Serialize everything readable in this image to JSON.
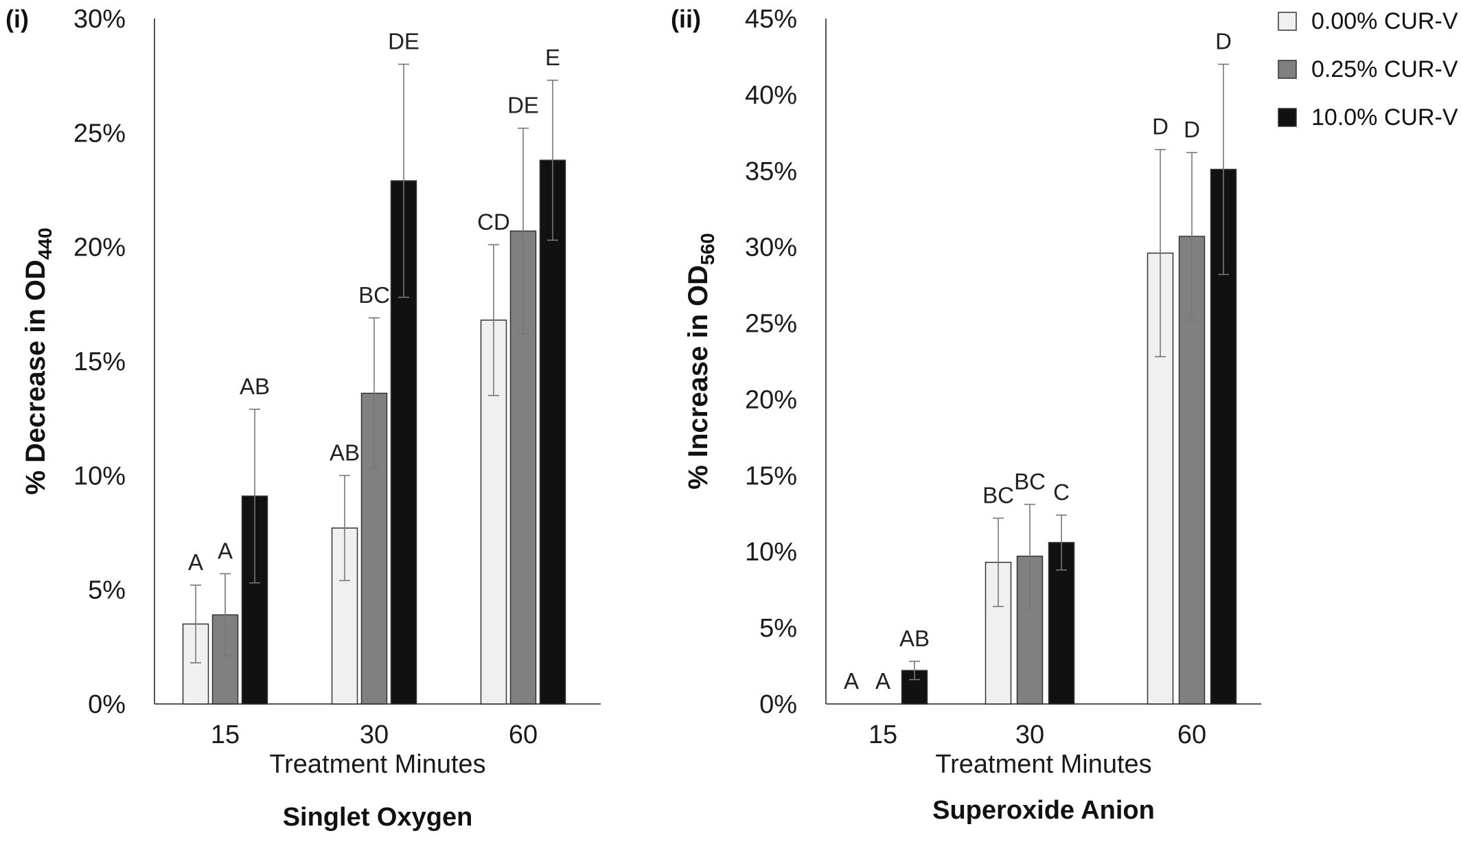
{
  "chart_data": [
    {
      "type": "bar",
      "panel_tag": "(i)",
      "title": "Singlet Oxygen",
      "xlabel": "Treatment Minutes",
      "ylabel_main": "% Decrease in OD",
      "ylabel_sub": "440",
      "ylim": [
        0,
        30
      ],
      "yticks": [
        0,
        5,
        10,
        15,
        20,
        25,
        30
      ],
      "ytick_labels": [
        "0%",
        "5%",
        "10%",
        "15%",
        "20%",
        "25%",
        "30%"
      ],
      "categories": [
        "15",
        "30",
        "60"
      ],
      "series": [
        {
          "name": "0.00% CUR-V",
          "color": "#f0f0f0",
          "values": [
            3.5,
            7.7,
            16.8
          ],
          "errors": [
            1.7,
            2.3,
            3.3
          ],
          "letters": [
            "A",
            "AB",
            "CD"
          ]
        },
        {
          "name": "0.25% CUR-V",
          "color": "#808080",
          "values": [
            3.9,
            13.6,
            20.7
          ],
          "errors": [
            1.8,
            3.3,
            4.5
          ],
          "letters": [
            "A",
            "BC",
            "DE"
          ]
        },
        {
          "name": "10.0% CUR-V",
          "color": "#111111",
          "values": [
            9.1,
            22.9,
            23.8
          ],
          "errors": [
            3.8,
            5.1,
            3.5
          ],
          "letters": [
            "AB",
            "DE",
            "E"
          ]
        }
      ],
      "grid": false
    },
    {
      "type": "bar",
      "panel_tag": "(ii)",
      "title": "Superoxide Anion",
      "xlabel": "Treatment Minutes",
      "ylabel_main": "% Increase in OD",
      "ylabel_sub": "560",
      "ylim": [
        0,
        45
      ],
      "yticks": [
        0,
        5,
        10,
        15,
        20,
        25,
        30,
        35,
        40,
        45
      ],
      "ytick_labels": [
        "0%",
        "5%",
        "10%",
        "15%",
        "20%",
        "25%",
        "30%",
        "35%",
        "40%",
        "45%"
      ],
      "categories": [
        "15",
        "30",
        "60"
      ],
      "series": [
        {
          "name": "0.00% CUR-V",
          "color": "#f0f0f0",
          "values": [
            0,
            9.3,
            29.6
          ],
          "errors": [
            0,
            2.9,
            6.8
          ],
          "letters": [
            "A",
            "BC",
            "D"
          ]
        },
        {
          "name": "0.25% CUR-V",
          "color": "#808080",
          "values": [
            0,
            9.7,
            30.7
          ],
          "errors": [
            0,
            3.4,
            5.5
          ],
          "letters": [
            "A",
            "BC",
            "D"
          ]
        },
        {
          "name": "10.0% CUR-V",
          "color": "#111111",
          "values": [
            2.2,
            10.6,
            35.1
          ],
          "errors": [
            0.6,
            1.8,
            6.9
          ],
          "letters": [
            "AB",
            "C",
            "D"
          ]
        }
      ],
      "grid": false
    }
  ],
  "legend": {
    "position": "top-right",
    "entries": [
      {
        "label": "0.00% CUR-V",
        "color": "#f0f0f0"
      },
      {
        "label": "0.25% CUR-V",
        "color": "#808080"
      },
      {
        "label": "10.0% CUR-V",
        "color": "#111111"
      }
    ]
  }
}
